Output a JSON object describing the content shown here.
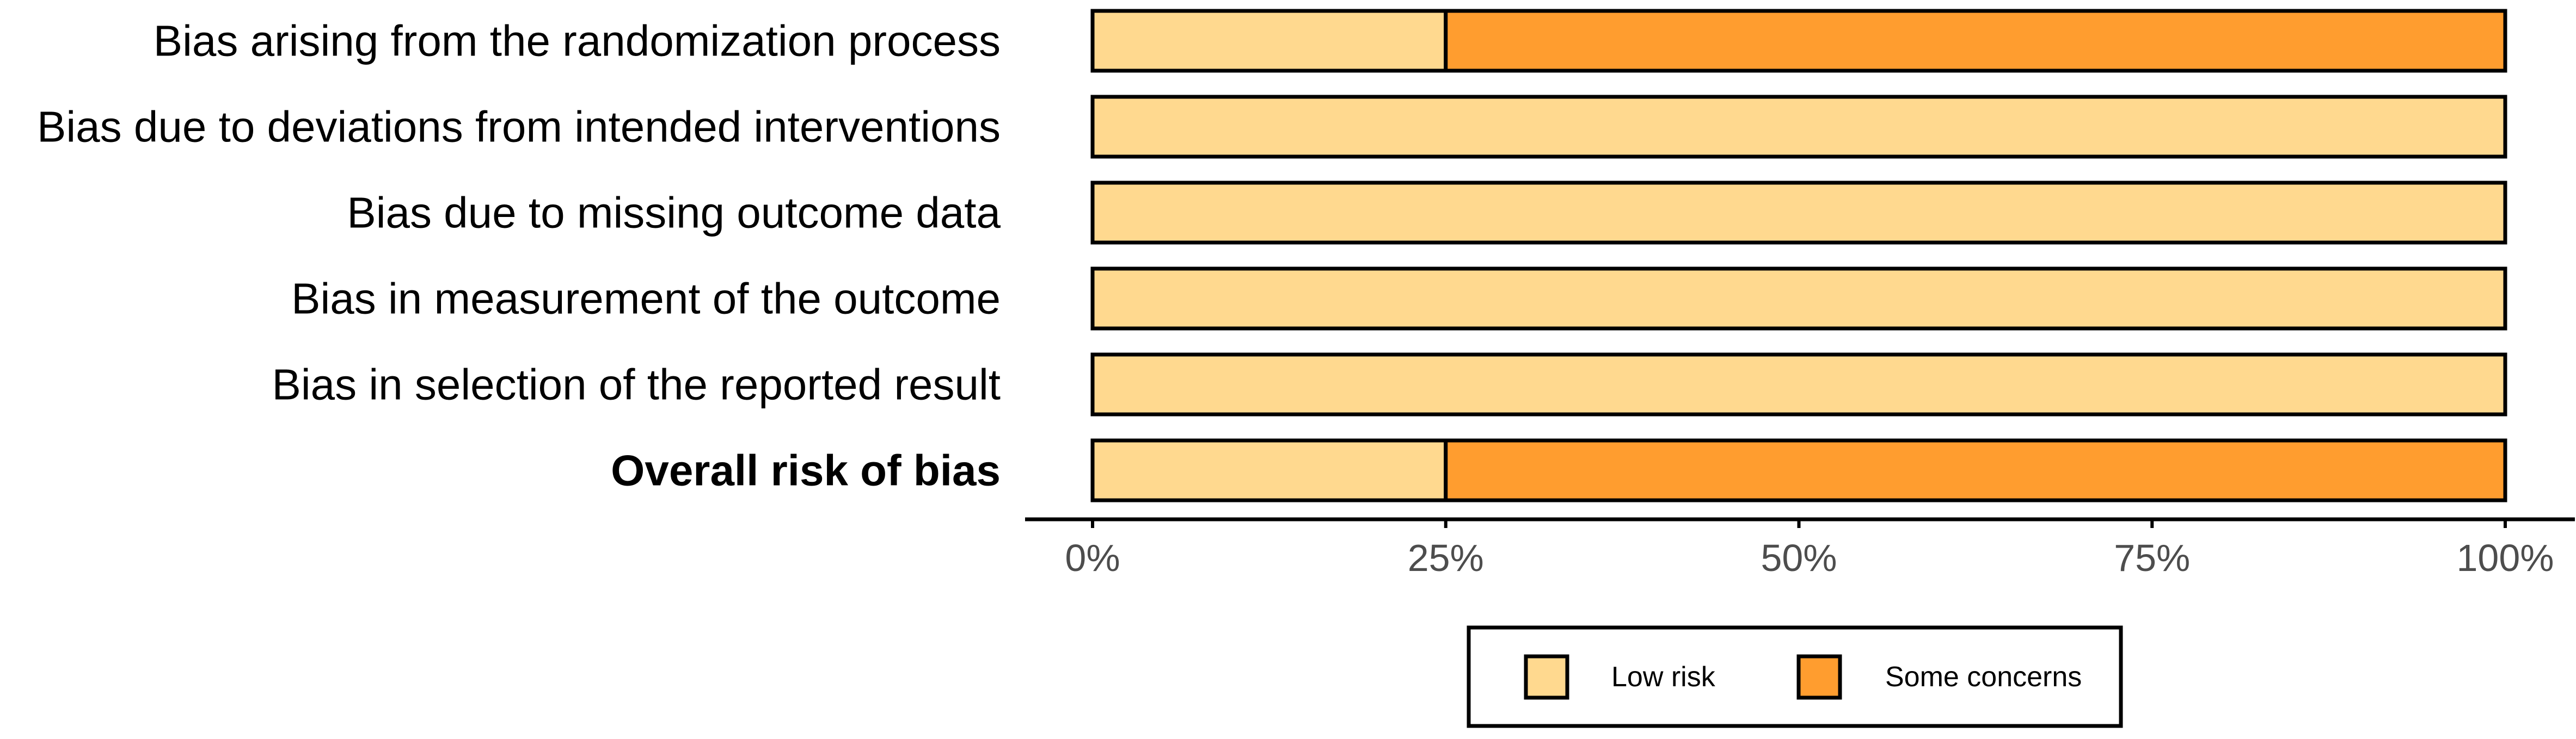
{
  "chart_data": {
    "type": "bar",
    "orientation": "horizontal",
    "stacked": true,
    "categories": [
      "Bias arising from the randomization process",
      "Bias due to deviations from intended interventions",
      "Bias due to missing outcome data",
      "Bias in measurement of the outcome",
      "Bias in selection of the reported result",
      "Overall risk of bias"
    ],
    "bold_categories": [
      "Overall risk of bias"
    ],
    "series": [
      {
        "name": "Low risk",
        "values": [
          25,
          100,
          100,
          100,
          100,
          25
        ],
        "color": "#FFD98F"
      },
      {
        "name": "Some concerns",
        "values": [
          75,
          0,
          0,
          0,
          0,
          75
        ],
        "color": "#FF9D2F"
      }
    ],
    "x_ticks": [
      0,
      25,
      50,
      75,
      100
    ],
    "x_tick_labels": [
      "0%",
      "25%",
      "50%",
      "75%",
      "100%"
    ],
    "xlim": [
      0,
      100
    ],
    "title": "",
    "xlabel": "",
    "ylabel": "",
    "grid": false,
    "legend_position": "bottom",
    "bar_outline_color": "#000000"
  }
}
